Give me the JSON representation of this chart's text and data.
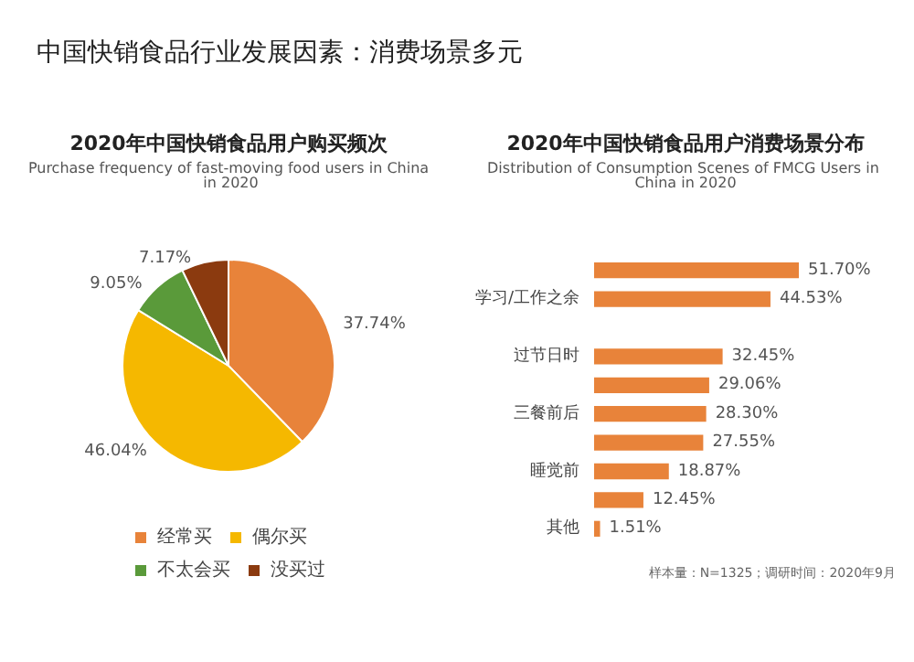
{
  "chart_data": [
    {
      "type": "pie",
      "title": "2020年中国快销食品用户购买频次",
      "subtitle": "Purchase frequency of fast-moving food users in China in 2020",
      "annotations": [
        "中国快销食品行业发展因素：消费场景多元"
      ],
      "categories": [
        "经常买",
        "偶尔买",
        "不太会买",
        "没买过"
      ],
      "values": [
        37.74,
        46.04,
        9.05,
        7.17
      ],
      "value_labels": [
        "37.74%",
        "46.04%",
        "9.05%",
        "7.17%"
      ],
      "colors": [
        "#e8833a",
        "#f5b800",
        "#5a9a3a",
        "#8b3a0f"
      ],
      "legend": "bottom"
    },
    {
      "type": "bar",
      "orientation": "horizontal",
      "title": "2020年中国快销食品用户消费场景分布",
      "subtitle": "Distribution of Consumption Scenes of FMCG Users in China in 2020",
      "annotations": [
        "样本量：N=1325；调研时间：2020年9月"
      ],
      "categories": [
        null,
        "学习/工作之余",
        null,
        "过节日时",
        null,
        "三餐前后",
        null,
        "睡觉前",
        null,
        "其他"
      ],
      "values": [
        51.7,
        44.53,
        null,
        32.45,
        29.06,
        28.3,
        27.55,
        18.87,
        12.45,
        1.51
      ],
      "value_labels": [
        "51.70%",
        "44.53%",
        null,
        "32.45%",
        "29.06%",
        "28.30%",
        "27.55%",
        "18.87%",
        "12.45%",
        "1.51%"
      ],
      "color": "#e8833a"
    }
  ]
}
